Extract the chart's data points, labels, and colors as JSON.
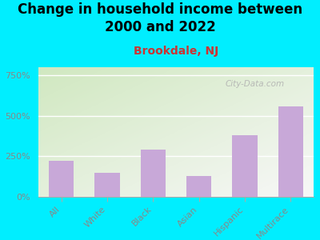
{
  "title": "Change in household income between\n2000 and 2022",
  "subtitle": "Brookdale, NJ",
  "categories": [
    "All",
    "White",
    "Black",
    "Asian",
    "Hispanic",
    "Multirace"
  ],
  "values": [
    220,
    150,
    290,
    130,
    380,
    560
  ],
  "bar_color": "#c8a8d8",
  "background_outer": "#00eeff",
  "background_inner_left": "#d0e8c0",
  "background_inner_right": "#f0f0f0",
  "title_fontsize": 12,
  "subtitle_fontsize": 10,
  "subtitle_color": "#cc3333",
  "tick_label_color": "#888888",
  "yticks": [
    0,
    250,
    500,
    750
  ],
  "ylim": [
    0,
    800
  ],
  "watermark": "City-Data.com",
  "watermark_color": "#b0b0b0"
}
